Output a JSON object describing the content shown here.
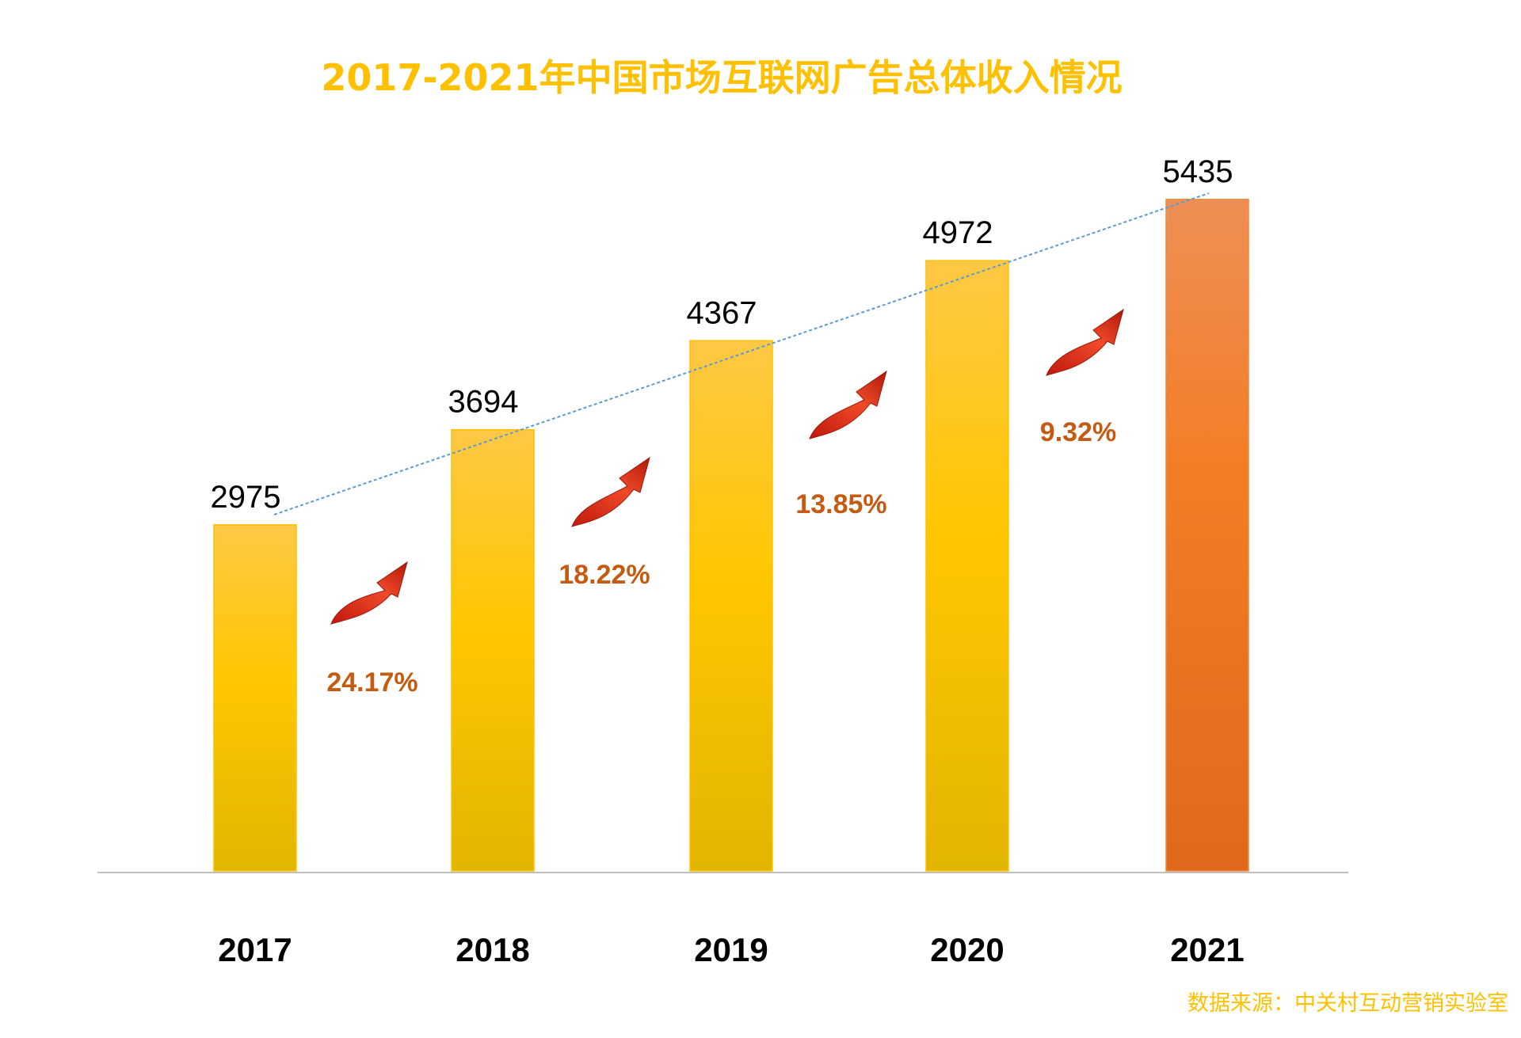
{
  "chart_data": {
    "type": "bar",
    "title": "2017-2021年中国市场互联网广告总体收入情况",
    "categories": [
      "2017",
      "2018",
      "2019",
      "2020",
      "2021"
    ],
    "values": [
      2975,
      3694,
      4367,
      4972,
      5435
    ],
    "growth_labels": [
      "24.17%",
      "18.22%",
      "13.85%",
      "9.32%"
    ],
    "trendline": {
      "style": "dashed",
      "color": "#5b9bd5"
    },
    "bar_colors": [
      "#ffc000",
      "#ffc000",
      "#ffc000",
      "#ffc000",
      "#ed7d31"
    ],
    "growth_color": "#c55a11",
    "arrow_color": "#e03a1e",
    "grid": false,
    "legend": "none",
    "xlabel": "",
    "ylabel": ""
  },
  "source": "数据来源：中关村互动营销实验室"
}
